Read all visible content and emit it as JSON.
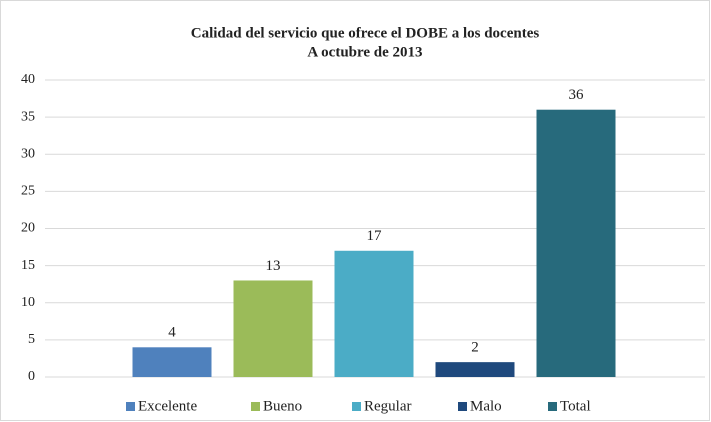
{
  "chart_data": {
    "type": "bar",
    "title": "Calidad del servicio que ofrece el DOBE a los  docentes",
    "subtitle": "A octubre de 2013",
    "categories": [
      null
    ],
    "series": [
      {
        "name": "Excelente",
        "color": "#4f81bd",
        "values": [
          4
        ]
      },
      {
        "name": "Bueno",
        "color": "#9bbb59",
        "values": [
          13
        ]
      },
      {
        "name": "Regular",
        "color": "#4bacc6",
        "values": [
          17
        ]
      },
      {
        "name": "Malo",
        "color": "#1f497d",
        "values": [
          2
        ]
      },
      {
        "name": "Total",
        "color": "#276a7c",
        "values": [
          36
        ]
      }
    ],
    "ylim": [
      0,
      40
    ],
    "yticks": [
      0,
      5,
      10,
      15,
      20,
      25,
      30,
      35,
      40
    ],
    "grid": true,
    "legend": "bottom"
  }
}
